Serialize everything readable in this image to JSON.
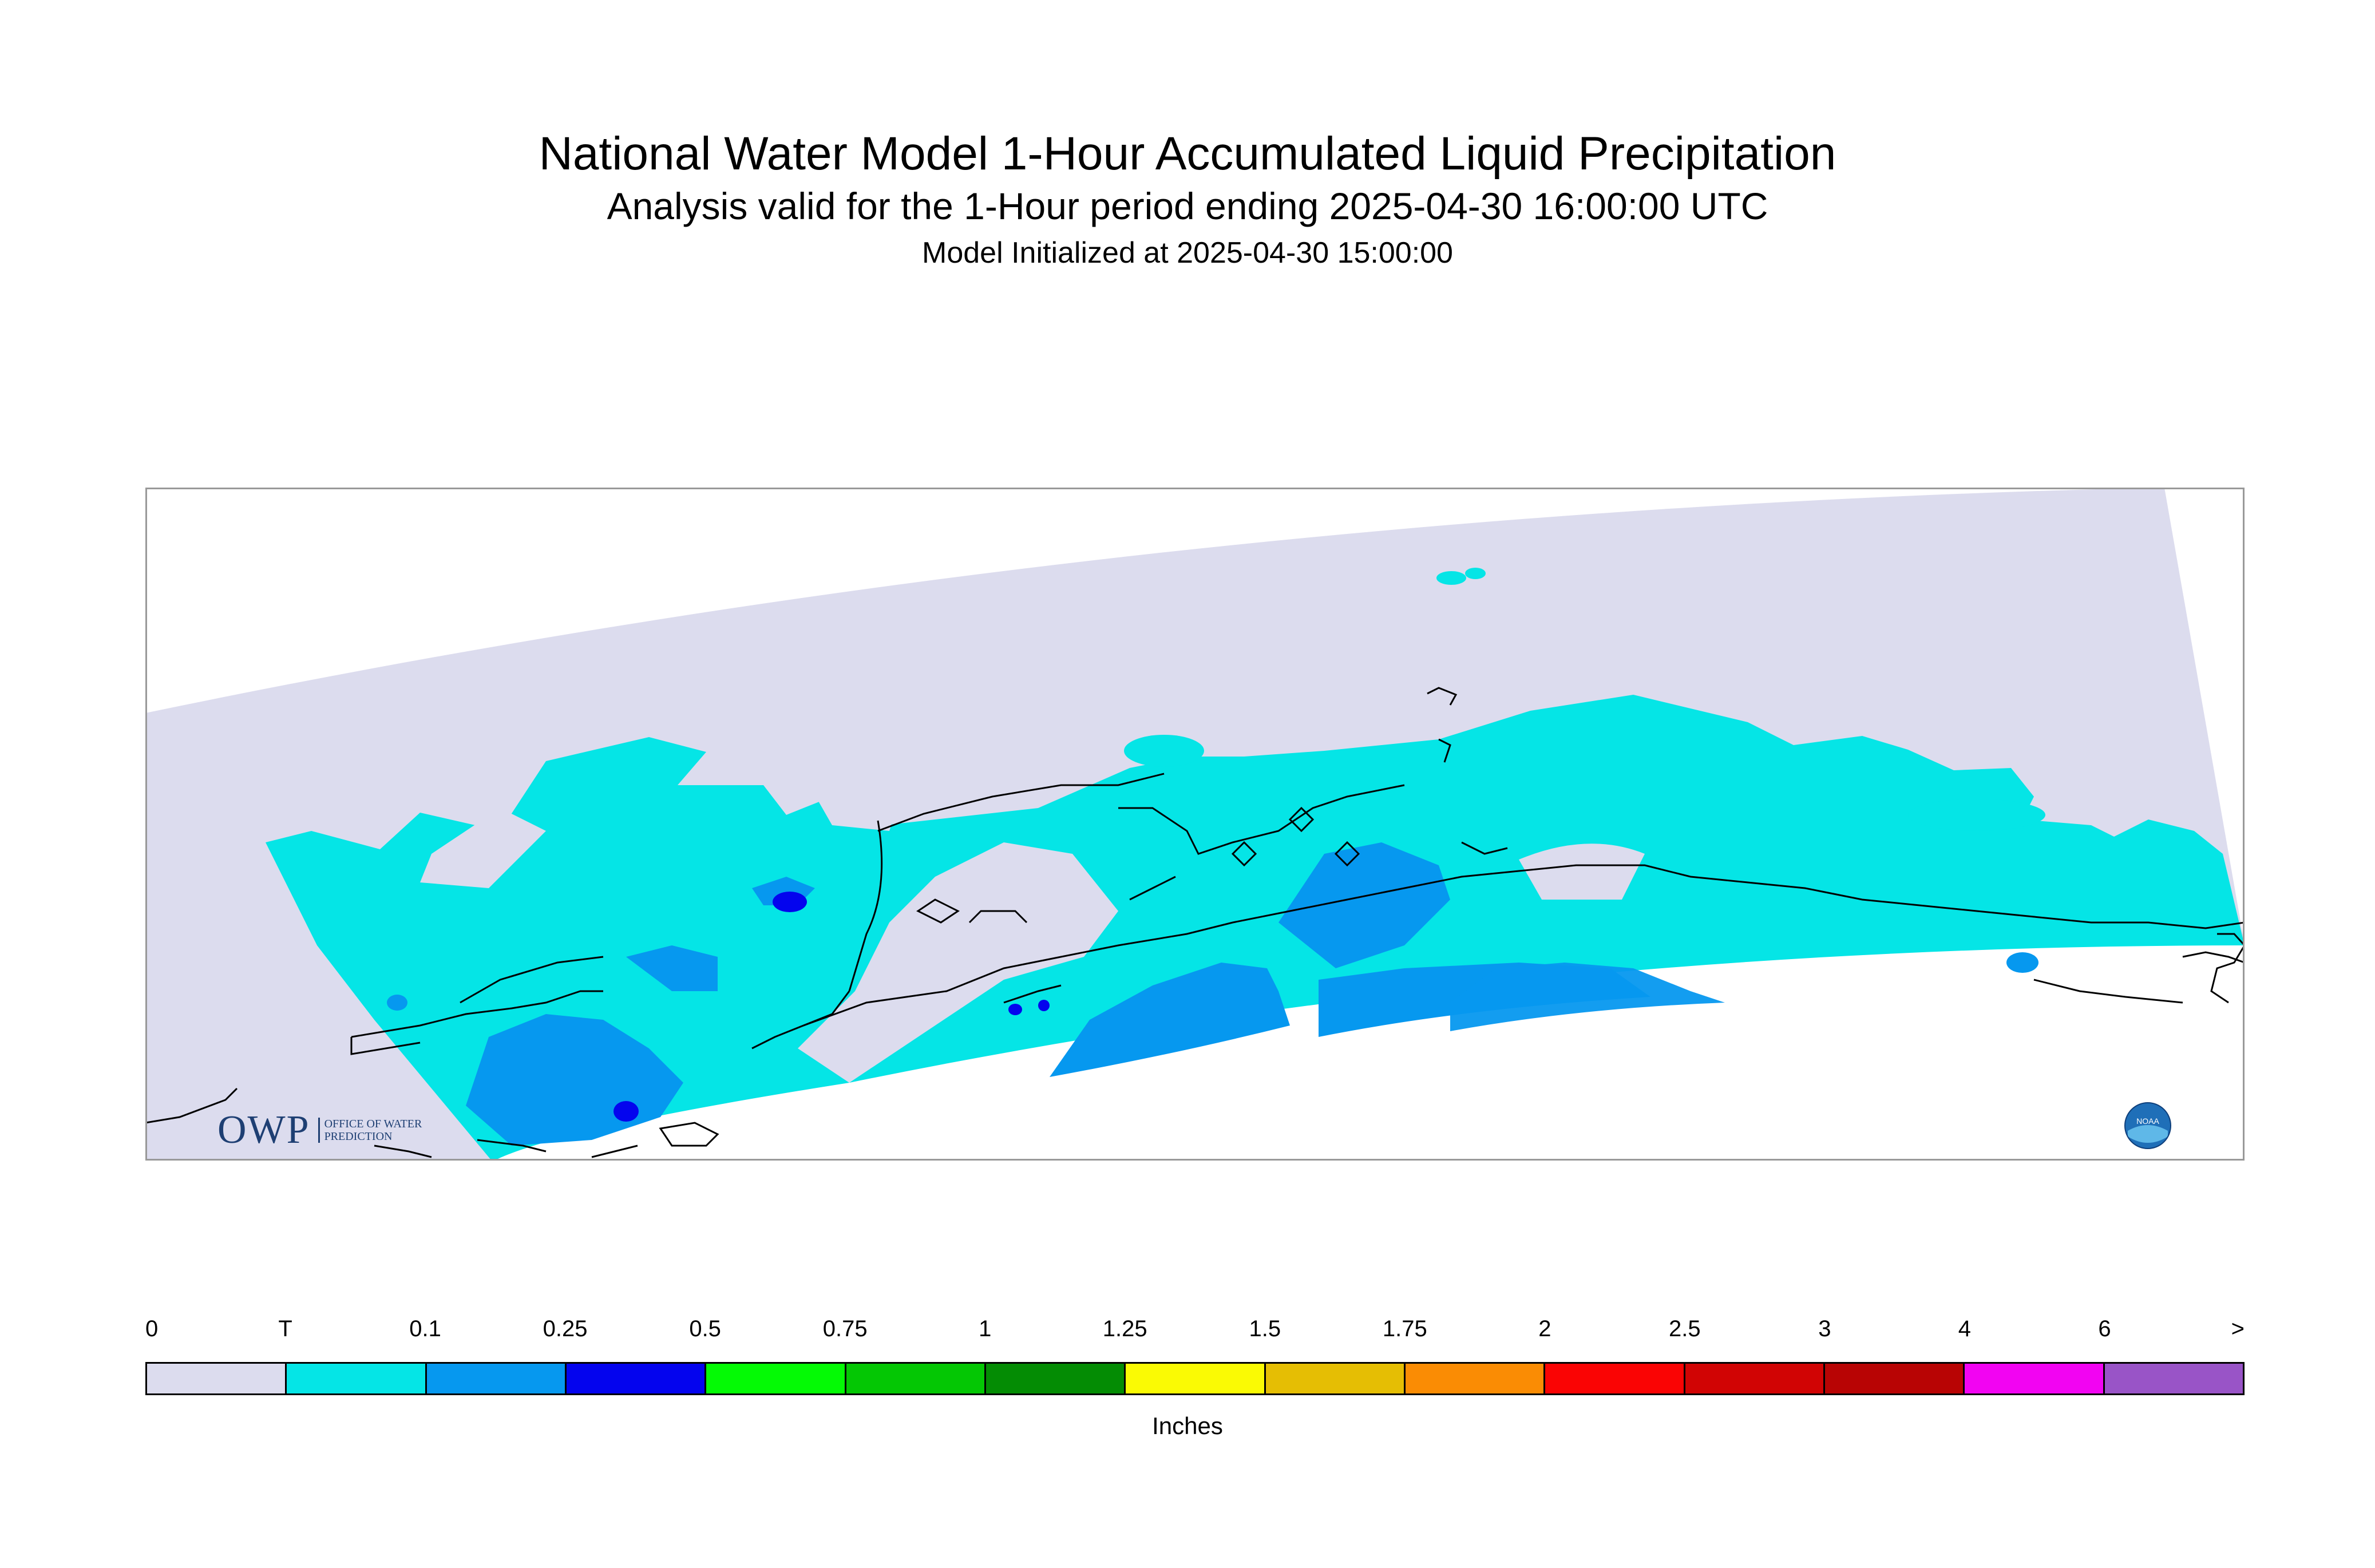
{
  "header": {
    "title": "National Water Model 1-Hour Accumulated Liquid Precipitation",
    "subtitle": "Analysis valid for the 1-Hour period ending 2025-04-30 16:00:00 UTC",
    "initialized": "Model Initialized at 2025-04-30 15:00:00"
  },
  "map": {
    "region": "Alaska",
    "background_color": "#dcdcee",
    "dominant_class": "T",
    "heavier_areas_classes": [
      "0.1",
      "0.25"
    ]
  },
  "logos": {
    "owp_text": "OWP",
    "owp_sub": "OFFICE OF WATER PREDICTION",
    "noaa_text": "NOAA"
  },
  "legend": {
    "labels": [
      "0",
      "T",
      "0.1",
      "0.25",
      "0.5",
      "0.75",
      "1",
      "1.25",
      "1.5",
      "1.75",
      "2",
      "2.5",
      "3",
      "4",
      "6",
      ">"
    ],
    "colors": [
      "#dcdcee",
      "#05e5e6",
      "#0698ef",
      "#0404ee",
      "#04fa05",
      "#04c704",
      "#048c04",
      "#fafa04",
      "#e5be04",
      "#fa8c04",
      "#fa0404",
      "#d10404",
      "#b80404",
      "#f204f2",
      "#9954c7"
    ],
    "units": "Inches"
  }
}
